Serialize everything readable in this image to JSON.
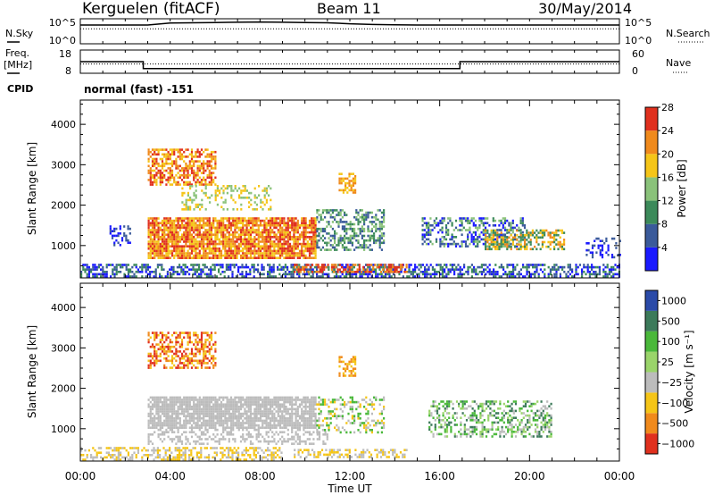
{
  "header": {
    "station": "Kerguelen (fitACF)",
    "beam": "Beam 11",
    "date": "30/May/2014"
  },
  "chart_data": [
    {
      "type": "line",
      "name": "noise-panel",
      "left_label": "N.Sky",
      "right_label": "N.Search",
      "left_ticks": [
        "10^5",
        "10^0"
      ],
      "right_ticks": [
        "10^5",
        "10^0"
      ],
      "x_hours": [
        0,
        1,
        2,
        3,
        4,
        5,
        6,
        7,
        8,
        9,
        10,
        11,
        12,
        13,
        14,
        15,
        16,
        17,
        18,
        19,
        20,
        21,
        22,
        23,
        24
      ],
      "sky_level": [
        0.75,
        0.75,
        0.75,
        0.75,
        0.83,
        0.84,
        0.85,
        0.86,
        0.87,
        0.86,
        0.85,
        0.84,
        0.8,
        0.77,
        0.76,
        0.75,
        0.75,
        0.75,
        0.75,
        0.75,
        0.75,
        0.75,
        0.75,
        0.75,
        0.75
      ],
      "search_level": [
        0.6,
        0.6,
        0.6,
        0.6,
        0.6,
        0.6,
        0.6,
        0.6,
        0.6,
        0.6,
        0.6,
        0.6,
        0.6,
        0.6,
        0.6,
        0.6,
        0.6,
        0.6,
        0.6,
        0.6,
        0.6,
        0.6,
        0.6,
        0.6,
        0.6
      ]
    },
    {
      "type": "line",
      "name": "frequency-panel",
      "left_label": "Freq.",
      "left_unit": "[MHz]",
      "right_label": "Nave",
      "left_ticks": [
        "18",
        "8"
      ],
      "right_ticks": [
        "60",
        "0"
      ],
      "freq_steps": [
        {
          "from": 0,
          "to": 2.8,
          "value": 13
        },
        {
          "from": 2.8,
          "to": 16.9,
          "value": 10
        },
        {
          "from": 16.9,
          "to": 24,
          "value": 13
        }
      ],
      "nave_level": 24
    },
    {
      "type": "heatmap",
      "name": "power-panel",
      "ylabel": "Slant Range [km]",
      "yticks": [
        1000,
        2000,
        3000,
        4000
      ],
      "ylim": [
        200,
        4600
      ],
      "xlim": [
        0,
        24
      ],
      "colorbar_label": "Power [dB]",
      "colorbar_ticks": [
        "4",
        "8",
        "12",
        "16",
        "20",
        "24",
        "28"
      ],
      "colors": [
        "#1a1aff",
        "#3a5a9a",
        "#3c8a5a",
        "#8ac27a",
        "#f5c518",
        "#f08a1c",
        "#e0301e"
      ],
      "blobs": [
        {
          "x0": 3.0,
          "x1": 10.5,
          "r0": 700,
          "r1": 1700,
          "density": 0.85,
          "levels": [
            4,
            5,
            6
          ]
        },
        {
          "x0": 3.0,
          "x1": 6.0,
          "r0": 2500,
          "r1": 3400,
          "density": 0.6,
          "levels": [
            4,
            5,
            6
          ]
        },
        {
          "x0": 4.5,
          "x1": 8.5,
          "r0": 1900,
          "r1": 2500,
          "density": 0.25,
          "levels": [
            3,
            4
          ]
        },
        {
          "x0": 10.5,
          "x1": 13.5,
          "r0": 900,
          "r1": 1900,
          "density": 0.5,
          "levels": [
            1,
            2,
            3
          ]
        },
        {
          "x0": 11.5,
          "x1": 12.2,
          "r0": 2300,
          "r1": 2800,
          "density": 0.5,
          "levels": [
            4,
            5
          ]
        },
        {
          "x0": 15.2,
          "x1": 19.8,
          "r0": 1000,
          "r1": 1700,
          "density": 0.45,
          "levels": [
            0,
            1,
            2,
            3
          ]
        },
        {
          "x0": 18.0,
          "x1": 21.5,
          "r0": 900,
          "r1": 1400,
          "density": 0.5,
          "levels": [
            2,
            4,
            5
          ]
        },
        {
          "x0": 0.0,
          "x1": 24.0,
          "r0": 250,
          "r1": 550,
          "density": 0.55,
          "levels": [
            0,
            1,
            2
          ]
        },
        {
          "x0": 9.5,
          "x1": 14.5,
          "r0": 350,
          "r1": 550,
          "density": 0.5,
          "levels": [
            5,
            6
          ]
        },
        {
          "x0": 1.3,
          "x1": 2.2,
          "r0": 1000,
          "r1": 1500,
          "density": 0.25,
          "levels": [
            0,
            1
          ]
        },
        {
          "x0": 22.5,
          "x1": 24.0,
          "r0": 700,
          "r1": 1200,
          "density": 0.3,
          "levels": [
            0,
            1
          ]
        }
      ]
    },
    {
      "type": "heatmap",
      "name": "velocity-panel",
      "ylabel": "Slant Range [km]",
      "yticks": [
        1000,
        2000,
        3000,
        4000
      ],
      "ylim": [
        200,
        4600
      ],
      "xlim": [
        0,
        24
      ],
      "xticks": [
        "00:00",
        "04:00",
        "08:00",
        "12:00",
        "16:00",
        "20:00",
        "00:00"
      ],
      "xlabel": "Time UT",
      "colorbar_label": "Velocity [m s⁻¹]",
      "colorbar_ticks": [
        "1000",
        "500",
        "100",
        "25",
        "−25",
        "−100",
        "−500",
        "−1000"
      ],
      "colors": [
        "#2a4aa8",
        "#3c7a5a",
        "#4ab83a",
        "#9ad46a",
        "#bcbcbc",
        "#f5c518",
        "#f08a1c",
        "#e0301e"
      ],
      "blobs": [
        {
          "x0": 3.0,
          "x1": 10.5,
          "r0": 1000,
          "r1": 1800,
          "density": 0.85,
          "levels": [
            4
          ]
        },
        {
          "x0": 3.0,
          "x1": 6.0,
          "r0": 2500,
          "r1": 3400,
          "density": 0.55,
          "levels": [
            5,
            6,
            7
          ]
        },
        {
          "x0": 3.0,
          "x1": 11.0,
          "r0": 600,
          "r1": 1000,
          "density": 0.35,
          "levels": [
            4
          ]
        },
        {
          "x0": 10.5,
          "x1": 13.5,
          "r0": 900,
          "r1": 1800,
          "density": 0.35,
          "levels": [
            4,
            2,
            5
          ]
        },
        {
          "x0": 11.5,
          "x1": 12.2,
          "r0": 2300,
          "r1": 2800,
          "density": 0.5,
          "levels": [
            5,
            6
          ]
        },
        {
          "x0": 15.5,
          "x1": 21.0,
          "r0": 800,
          "r1": 1700,
          "density": 0.4,
          "levels": [
            1,
            2,
            3,
            4
          ]
        },
        {
          "x0": 0.0,
          "x1": 9.0,
          "r0": 250,
          "r1": 550,
          "density": 0.45,
          "levels": [
            5,
            4
          ]
        },
        {
          "x0": 9.5,
          "x1": 14.5,
          "r0": 300,
          "r1": 500,
          "density": 0.45,
          "levels": [
            5,
            4
          ]
        }
      ]
    }
  ],
  "cpid": {
    "label": "CPID",
    "value": "normal (fast) -151"
  }
}
